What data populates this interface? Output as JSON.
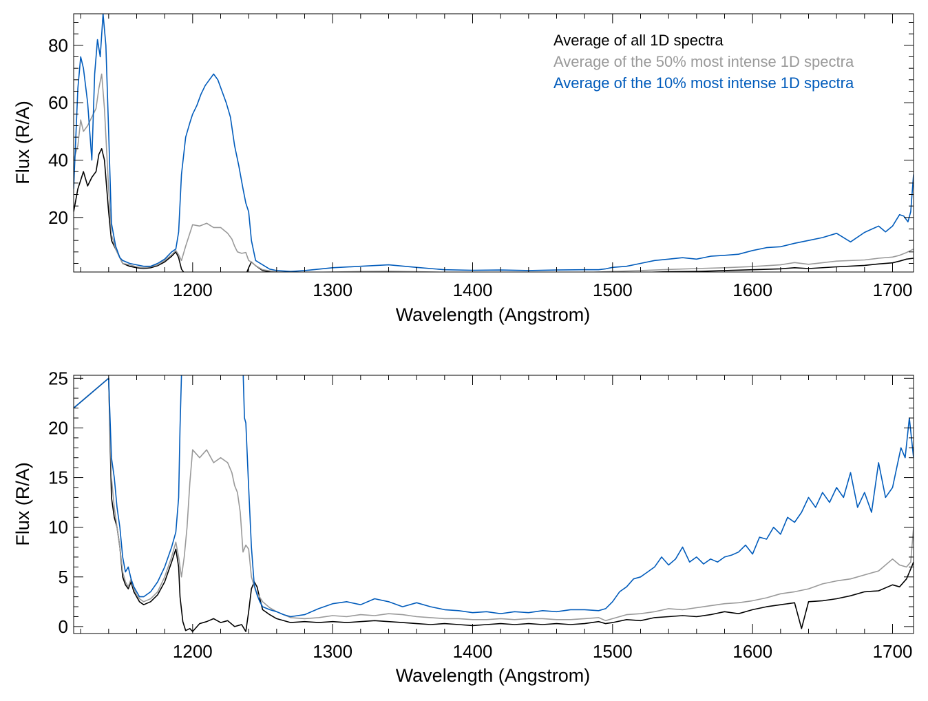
{
  "chart_data": [
    {
      "type": "line",
      "xlabel": "Wavelength (Angstrom)",
      "ylabel": "Flux (R/A)",
      "xlim": [
        1115,
        1715
      ],
      "ylim": [
        1,
        91
      ],
      "xticks": [
        1200,
        1300,
        1400,
        1500,
        1600,
        1700
      ],
      "yticks": [
        20,
        40,
        60,
        80
      ],
      "grid": false,
      "legend": "top-right",
      "series": [
        {
          "name": "Average of all 1D spectra",
          "color": "#000000",
          "x": [
            1115,
            1118,
            1120,
            1122,
            1125,
            1128,
            1131,
            1133,
            1135,
            1137,
            1140,
            1142,
            1145,
            1148,
            1150,
            1155,
            1160,
            1165,
            1170,
            1175,
            1180,
            1185,
            1188,
            1190,
            1192,
            1195,
            1200,
            1210,
            1220,
            1230,
            1238,
            1240,
            1242,
            1245,
            1250,
            1260,
            1280,
            1300,
            1320,
            1340,
            1360,
            1380,
            1400,
            1420,
            1440,
            1460,
            1480,
            1490,
            1495,
            1500,
            1520,
            1540,
            1560,
            1580,
            1600,
            1620,
            1630,
            1640,
            1660,
            1680,
            1690,
            1700,
            1705,
            1710,
            1715
          ],
          "y": [
            22,
            30,
            33,
            36,
            31,
            34,
            36,
            42,
            44,
            40,
            22,
            12,
            9,
            6,
            4,
            3,
            2.5,
            2.2,
            2.5,
            3.2,
            4.5,
            6.5,
            8,
            6,
            2,
            0,
            0.3,
            0.6,
            0.4,
            0.2,
            0,
            2.5,
            4.5,
            3.2,
            1.5,
            0.8,
            0.4,
            0.5,
            0.6,
            0.5,
            0.4,
            0.3,
            0.3,
            0.2,
            0.3,
            0.3,
            0.3,
            0.5,
            0.8,
            0.6,
            0.8,
            1.1,
            1.2,
            1.5,
            1.8,
            2.1,
            2.5,
            2.2,
            2.8,
            3.3,
            3.8,
            4.2,
            4.8,
            5.5,
            5.8
          ]
        },
        {
          "name": "Average of the 50% most intense 1D spectra",
          "color": "#999999",
          "x": [
            1115,
            1118,
            1120,
            1122,
            1125,
            1128,
            1131,
            1133,
            1135,
            1137,
            1140,
            1142,
            1145,
            1148,
            1150,
            1155,
            1160,
            1165,
            1170,
            1175,
            1180,
            1185,
            1188,
            1190,
            1192,
            1195,
            1200,
            1205,
            1210,
            1215,
            1220,
            1225,
            1228,
            1230,
            1232,
            1235,
            1238,
            1240,
            1242,
            1245,
            1250,
            1260,
            1280,
            1300,
            1320,
            1340,
            1360,
            1380,
            1400,
            1420,
            1440,
            1460,
            1480,
            1490,
            1500,
            1520,
            1540,
            1560,
            1580,
            1600,
            1620,
            1630,
            1640,
            1660,
            1680,
            1690,
            1700,
            1705,
            1710,
            1715
          ],
          "y": [
            40,
            45,
            54,
            50,
            52,
            55,
            58,
            65,
            70,
            58,
            30,
            14,
            9,
            6,
            4,
            3.5,
            2.8,
            2.5,
            2.8,
            3.5,
            5,
            7,
            8.5,
            7,
            5,
            10,
            17.5,
            17,
            18,
            16.5,
            16.5,
            14.5,
            12.5,
            10,
            8,
            7.5,
            7.8,
            5,
            4.5,
            3.2,
            1.8,
            1,
            0.8,
            1,
            1.2,
            1.3,
            1.1,
            0.9,
            0.8,
            0.7,
            0.8,
            0.7,
            0.8,
            1,
            1.2,
            1.5,
            1.9,
            2.2,
            2.5,
            2.9,
            3.5,
            4.3,
            3.7,
            4.8,
            5.2,
            5.8,
            6.2,
            6.8,
            7.8,
            9
          ]
        },
        {
          "name": "Average of the 10% most intense 1D spectra",
          "color": "#005BBB",
          "x": [
            1115,
            1118,
            1120,
            1122,
            1125,
            1128,
            1130,
            1132,
            1134,
            1136,
            1138,
            1140,
            1142,
            1145,
            1148,
            1150,
            1155,
            1160,
            1165,
            1170,
            1175,
            1180,
            1185,
            1188,
            1190,
            1192,
            1195,
            1198,
            1200,
            1203,
            1206,
            1209,
            1212,
            1215,
            1218,
            1221,
            1224,
            1227,
            1230,
            1233,
            1236,
            1238,
            1240,
            1242,
            1245,
            1250,
            1255,
            1260,
            1270,
            1280,
            1300,
            1320,
            1340,
            1360,
            1380,
            1400,
            1420,
            1440,
            1460,
            1480,
            1490,
            1495,
            1500,
            1510,
            1520,
            1530,
            1540,
            1550,
            1560,
            1570,
            1580,
            1590,
            1600,
            1610,
            1620,
            1630,
            1640,
            1650,
            1660,
            1670,
            1680,
            1690,
            1695,
            1700,
            1705,
            1708,
            1711,
            1713,
            1715
          ],
          "y": [
            30,
            65,
            76,
            72,
            60,
            40,
            70,
            82,
            76,
            91,
            80,
            50,
            18,
            10,
            6,
            5,
            4,
            3.5,
            3,
            3,
            4,
            5.5,
            8,
            9,
            15,
            35,
            48,
            53,
            56,
            59,
            63,
            66,
            68,
            70,
            68,
            64,
            60,
            55,
            45,
            38,
            30,
            25,
            22,
            12,
            5,
            3.5,
            2,
            1.5,
            1.2,
            1.5,
            2.5,
            3,
            3.5,
            2.6,
            1.8,
            1.6,
            1.7,
            1.5,
            1.7,
            1.8,
            1.8,
            2.1,
            2.6,
            3,
            4,
            5,
            5.5,
            6,
            5.5,
            6.5,
            6.8,
            7.2,
            8.5,
            9.5,
            9.8,
            11,
            12,
            13,
            14.5,
            11.5,
            14.8,
            17,
            15,
            17,
            21,
            20.5,
            18.5,
            22,
            35
          ]
        }
      ]
    },
    {
      "type": "line",
      "xlabel": "Wavelength (Angstrom)",
      "ylabel": "Flux (R/A)",
      "xlim": [
        1115,
        1715
      ],
      "ylim": [
        -0.7,
        25.3
      ],
      "xticks": [
        1200,
        1300,
        1400,
        1500,
        1600,
        1700
      ],
      "yticks": [
        0,
        5,
        10,
        15,
        20,
        25
      ],
      "grid": false,
      "legend": "none",
      "series": [
        {
          "color": "#000000",
          "x": [
            1115,
            1140,
            1142,
            1144,
            1146,
            1148,
            1150,
            1152,
            1154,
            1156,
            1158,
            1160,
            1162,
            1165,
            1170,
            1175,
            1180,
            1185,
            1188,
            1190,
            1191,
            1193,
            1195,
            1198,
            1200,
            1205,
            1210,
            1215,
            1220,
            1225,
            1230,
            1235,
            1238,
            1240,
            1242,
            1244,
            1246,
            1248,
            1250,
            1255,
            1260,
            1270,
            1280,
            1290,
            1300,
            1310,
            1320,
            1330,
            1340,
            1350,
            1360,
            1370,
            1380,
            1390,
            1400,
            1410,
            1420,
            1430,
            1440,
            1450,
            1460,
            1470,
            1480,
            1490,
            1495,
            1500,
            1510,
            1520,
            1530,
            1540,
            1550,
            1560,
            1570,
            1580,
            1590,
            1600,
            1610,
            1620,
            1630,
            1635,
            1640,
            1650,
            1660,
            1670,
            1680,
            1690,
            1700,
            1705,
            1710,
            1713,
            1715
          ],
          "y": [
            22,
            25,
            13,
            11,
            10,
            8,
            5,
            4.2,
            3.8,
            4.5,
            3.5,
            3,
            2.5,
            2.2,
            2.5,
            3.2,
            4.5,
            6.5,
            7.8,
            6,
            3,
            0.5,
            -0.4,
            -0.2,
            -0.5,
            0.3,
            0.5,
            0.8,
            0.4,
            0.6,
            0,
            0.2,
            -0.5,
            1.5,
            3.8,
            4.5,
            4,
            2.8,
            1.7,
            1.2,
            0.8,
            0.4,
            0.5,
            0.4,
            0.5,
            0.4,
            0.5,
            0.6,
            0.5,
            0.4,
            0.3,
            0.2,
            0.3,
            0.2,
            0.1,
            0.2,
            0.3,
            0.2,
            0.3,
            0.2,
            0.3,
            0.2,
            0.3,
            0.5,
            0.3,
            0.4,
            0.7,
            0.6,
            0.9,
            1,
            1.1,
            1,
            1.2,
            1.5,
            1.3,
            1.7,
            2,
            2.2,
            2.4,
            -0.2,
            2.5,
            2.6,
            2.8,
            3.1,
            3.5,
            3.6,
            4.2,
            4,
            4.8,
            5.8,
            6.5
          ]
        },
        {
          "color": "#999999",
          "x": [
            1115,
            1140,
            1142,
            1144,
            1146,
            1148,
            1150,
            1152,
            1154,
            1156,
            1158,
            1160,
            1162,
            1165,
            1170,
            1175,
            1180,
            1185,
            1188,
            1190,
            1192,
            1194,
            1196,
            1198,
            1200,
            1205,
            1210,
            1215,
            1220,
            1225,
            1228,
            1230,
            1232,
            1234,
            1236,
            1238,
            1240,
            1242,
            1245,
            1250,
            1255,
            1260,
            1270,
            1280,
            1290,
            1300,
            1310,
            1320,
            1330,
            1340,
            1350,
            1360,
            1370,
            1380,
            1390,
            1400,
            1410,
            1420,
            1430,
            1440,
            1450,
            1460,
            1470,
            1480,
            1490,
            1495,
            1500,
            1510,
            1520,
            1530,
            1540,
            1550,
            1560,
            1570,
            1580,
            1590,
            1600,
            1610,
            1620,
            1630,
            1640,
            1650,
            1660,
            1670,
            1680,
            1690,
            1700,
            1705,
            1710,
            1713,
            1715
          ],
          "y": [
            22,
            25,
            15,
            12,
            10,
            8,
            5.5,
            4.5,
            4,
            4.8,
            3.8,
            3.2,
            2.8,
            2.5,
            2.8,
            3.5,
            5,
            7,
            8.5,
            7,
            5,
            7,
            10,
            14.5,
            17.8,
            17,
            17.8,
            16.5,
            17,
            16.5,
            15.5,
            14.2,
            13.5,
            11.5,
            7.5,
            8.2,
            7.8,
            5,
            3.6,
            2.5,
            1.9,
            1.5,
            0.9,
            0.8,
            0.9,
            1.1,
            1,
            1.2,
            1.1,
            1.3,
            1.2,
            1,
            0.9,
            0.8,
            0.8,
            0.7,
            0.7,
            0.8,
            0.7,
            0.8,
            0.8,
            0.7,
            0.7,
            0.8,
            0.9,
            0.6,
            0.8,
            1.2,
            1.3,
            1.5,
            1.8,
            1.7,
            1.9,
            2.1,
            2.3,
            2.4,
            2.6,
            2.9,
            3.3,
            3.5,
            3.8,
            4.3,
            4.6,
            4.8,
            5.2,
            5.6,
            6.8,
            6.2,
            6,
            6.5,
            10
          ]
        },
        {
          "color": "#005BBB",
          "x": [
            1115,
            1140,
            1142,
            1144,
            1146,
            1148,
            1150,
            1152,
            1154,
            1156,
            1158,
            1160,
            1162,
            1165,
            1170,
            1175,
            1180,
            1185,
            1188,
            1190,
            1191,
            1192,
            1193,
            1236,
            1237,
            1238,
            1240,
            1242,
            1244,
            1246,
            1248,
            1250,
            1255,
            1260,
            1265,
            1270,
            1280,
            1290,
            1300,
            1310,
            1320,
            1330,
            1340,
            1350,
            1360,
            1370,
            1380,
            1390,
            1400,
            1410,
            1420,
            1430,
            1440,
            1450,
            1460,
            1470,
            1480,
            1490,
            1495,
            1500,
            1505,
            1510,
            1515,
            1520,
            1525,
            1530,
            1535,
            1540,
            1545,
            1550,
            1555,
            1560,
            1565,
            1570,
            1575,
            1580,
            1585,
            1590,
            1595,
            1600,
            1605,
            1610,
            1615,
            1620,
            1625,
            1630,
            1635,
            1640,
            1645,
            1650,
            1655,
            1660,
            1665,
            1670,
            1675,
            1680,
            1685,
            1690,
            1695,
            1700,
            1703,
            1706,
            1709,
            1712,
            1715
          ],
          "y": [
            22,
            25,
            17,
            15,
            12,
            10,
            7,
            5.5,
            6,
            4.8,
            4,
            3.5,
            3,
            3,
            3.5,
            4.5,
            6,
            8,
            9.5,
            13,
            20,
            25.3,
            26,
            26,
            21,
            20.5,
            14,
            8,
            4.2,
            3.2,
            2.5,
            2,
            1.7,
            1.5,
            1.2,
            1,
            1.2,
            1.8,
            2.3,
            2.5,
            2.2,
            2.8,
            2.5,
            2,
            2.4,
            2,
            1.7,
            1.6,
            1.4,
            1.5,
            1.3,
            1.5,
            1.4,
            1.6,
            1.5,
            1.7,
            1.7,
            1.6,
            1.8,
            2.5,
            3.5,
            4,
            4.8,
            5,
            5.5,
            6,
            7,
            6.2,
            6.8,
            8,
            6.5,
            7,
            6.3,
            6.8,
            6.5,
            7,
            7.2,
            7.5,
            8.2,
            7.3,
            9,
            8.8,
            10,
            9.3,
            11,
            10.5,
            11.5,
            13,
            12,
            13.5,
            12.5,
            14,
            13,
            15.5,
            12,
            13.5,
            11.5,
            16.5,
            13,
            14,
            16,
            18,
            17,
            21,
            17
          ]
        }
      ]
    }
  ]
}
